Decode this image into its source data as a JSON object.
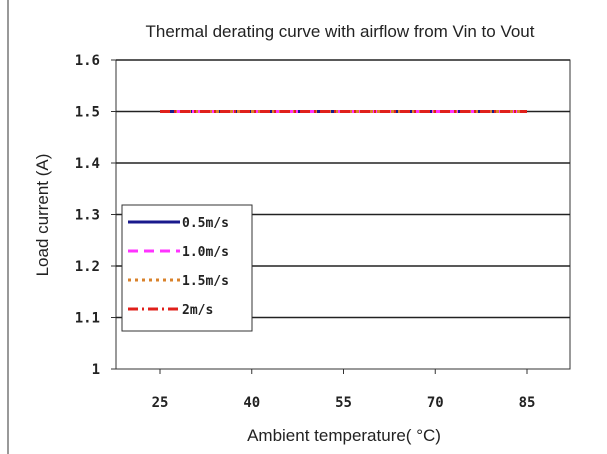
{
  "chart_data": {
    "type": "line",
    "title": "Thermal derating curve with airflow from Vin to Vout",
    "xlabel": "Ambient temperature( °C)",
    "ylabel": "Load current (A)",
    "x": [
      25,
      40,
      55,
      70,
      85
    ],
    "x_tick_labels": [
      "25",
      "40",
      "55",
      "70",
      "85"
    ],
    "xlim": [
      25,
      85
    ],
    "y_tick_labels": [
      "1",
      "1.1",
      "1.2",
      "1.3",
      "1.4",
      "1.5",
      "1.6"
    ],
    "ylim": [
      1,
      1.6
    ],
    "grid": true,
    "legend_position": "left",
    "series": [
      {
        "name": "0.5m/s",
        "values": [
          1.5,
          1.5,
          1.5,
          1.5,
          1.5
        ],
        "color": "#1a1a8c",
        "dash": "solid"
      },
      {
        "name": "1.0m/s",
        "values": [
          1.5,
          1.5,
          1.5,
          1.5,
          1.5
        ],
        "color": "#ff33ff",
        "dash": "dashed"
      },
      {
        "name": "1.5m/s",
        "values": [
          1.5,
          1.5,
          1.5,
          1.5,
          1.5
        ],
        "color": "#d9822b",
        "dash": "dotted"
      },
      {
        "name": "2m/s",
        "values": [
          1.5,
          1.5,
          1.5,
          1.5,
          1.5
        ],
        "color": "#e0201b",
        "dash": "dashdot"
      }
    ]
  }
}
